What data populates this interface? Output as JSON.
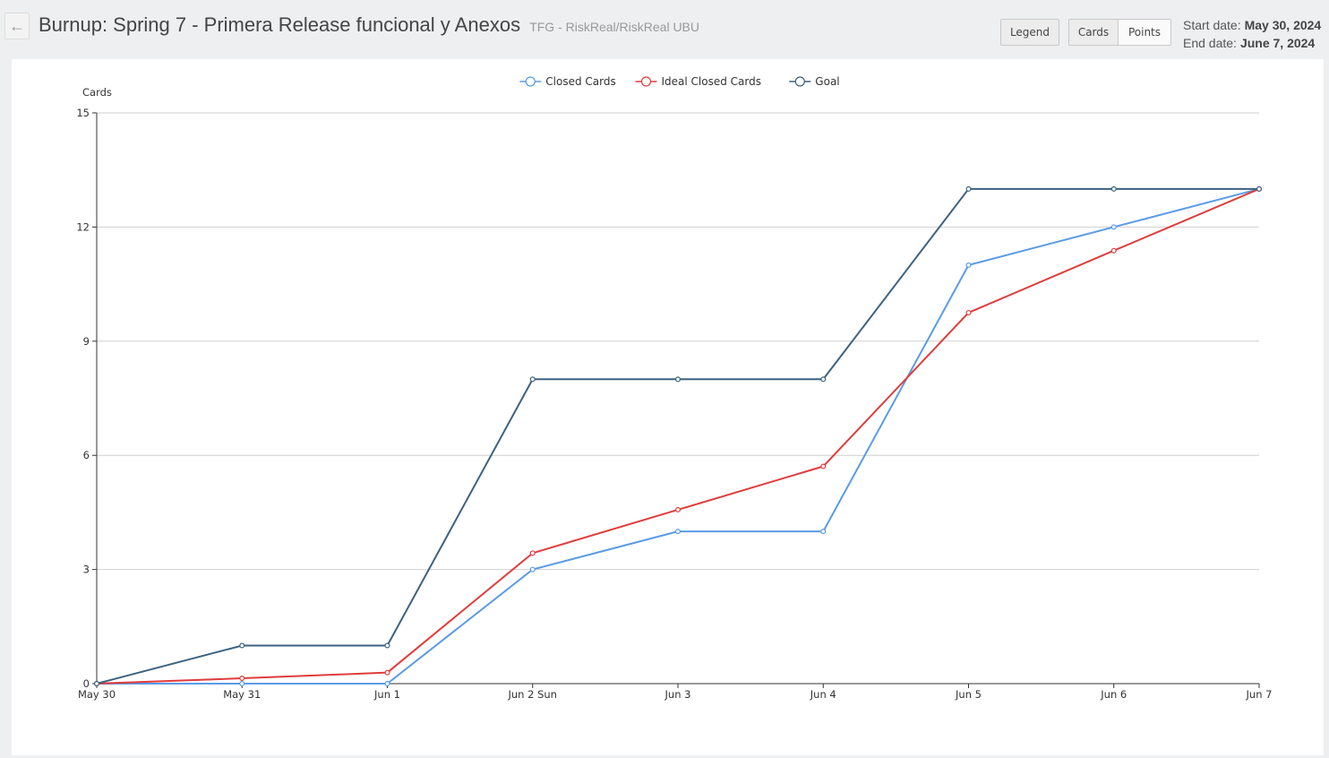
{
  "header": {
    "back_label": "←",
    "title": "Burnup: Spring 7 - Primera Release funcional y Anexos",
    "subtitle": "TFG - RiskReal/RiskReal UBU"
  },
  "toolbar": {
    "legend_label": "Legend",
    "cards_label": "Cards",
    "points_label": "Points"
  },
  "dates": {
    "start_label": "Start date:",
    "start_value": "May 30, 2024",
    "end_label": "End date:",
    "end_value": "June 7, 2024"
  },
  "chart_data": {
    "type": "line",
    "ylabel": "Cards",
    "xlabel": "",
    "ylim": [
      0,
      15
    ],
    "yticks": [
      0,
      3,
      6,
      9,
      12,
      15
    ],
    "grid": true,
    "legend_position": "top-center",
    "categories": [
      "May 30",
      "May 31",
      "Jun 1",
      "Jun 2 Sun",
      "Jun 3",
      "Jun 4",
      "Jun 5",
      "Jun 6",
      "Jun 7"
    ],
    "series": [
      {
        "name": "Closed Cards",
        "color": "#5b9be6",
        "values": [
          0,
          0,
          0,
          3,
          4,
          4,
          11,
          12,
          13
        ]
      },
      {
        "name": "Ideal Closed Cards",
        "color": "#e03c3c",
        "values": [
          0,
          0.14,
          0.29,
          3.43,
          4.57,
          5.71,
          9.75,
          11.38,
          13
        ]
      },
      {
        "name": "Goal",
        "color": "#3c6280",
        "values": [
          0,
          1,
          1,
          8,
          8,
          8,
          13,
          13,
          13
        ]
      }
    ]
  }
}
